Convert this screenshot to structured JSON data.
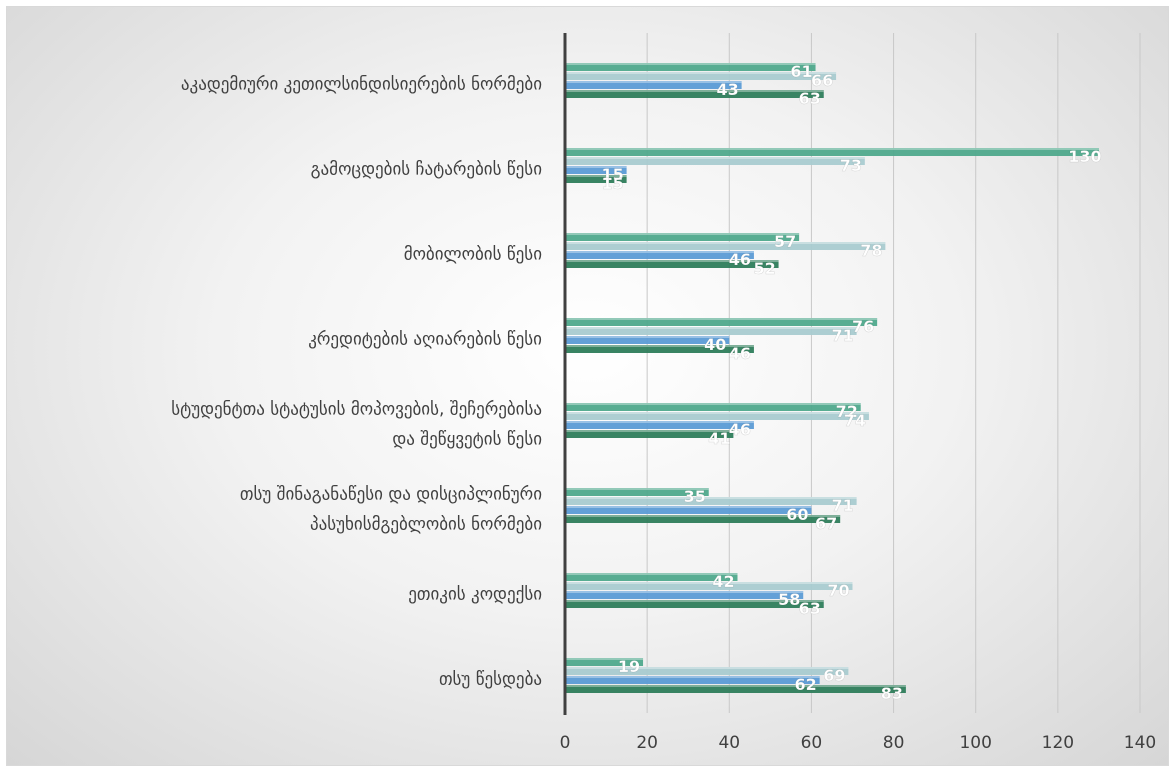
{
  "chart_data": {
    "type": "bar",
    "orientation": "horizontal",
    "categories": [
      "აკადემიური კეთილსინდისიერების ნორმები",
      "გამოცდების ჩატარების წესი",
      "მობილობის წესი",
      "კრედიტების აღიარების წესი",
      "სტუდენტთა სტატუსის მოპოვების, შეჩერებისა და შეწყვეტის წესი",
      "თსუ შინაგანაწესი და დისციპლინური პასუხისმგებლობის ნორმები",
      "ეთიკის კოდექსი",
      "თსუ წესდება"
    ],
    "category_lines": [
      [
        "აკადემიური კეთილსინდისიერების ნორმები"
      ],
      [
        "გამოცდების ჩატარების წესი"
      ],
      [
        "მობილობის წესი"
      ],
      [
        "კრედიტების აღიარების წესი"
      ],
      [
        "სტუდენტთა სტატუსის მოპოვების, შეჩერებისა",
        "და შეწყვეტის წესი"
      ],
      [
        "თსუ შინაგანაწესი და დისციპლინური",
        "პასუხისმგებლობის ნორმები"
      ],
      [
        "ეთიკის კოდექსი"
      ],
      [
        "თსუ წესდება"
      ]
    ],
    "series": [
      {
        "color": "#4fa98c",
        "values": [
          61,
          130,
          57,
          76,
          72,
          35,
          42,
          19
        ]
      },
      {
        "color": "#a9cbd0",
        "values": [
          66,
          73,
          78,
          71,
          74,
          71,
          70,
          69
        ]
      },
      {
        "color": "#5b9bd5",
        "values": [
          43,
          15,
          46,
          40,
          46,
          60,
          58,
          62
        ]
      },
      {
        "color": "#2e7d5b",
        "values": [
          63,
          15,
          52,
          46,
          41,
          67,
          63,
          83
        ]
      }
    ],
    "xlim": [
      0,
      140
    ],
    "xticks": [
      "0",
      "20",
      "40",
      "60",
      "80",
      "100",
      "120",
      "140"
    ],
    "grid": true,
    "title": "",
    "xlabel": "",
    "ylabel": ""
  }
}
